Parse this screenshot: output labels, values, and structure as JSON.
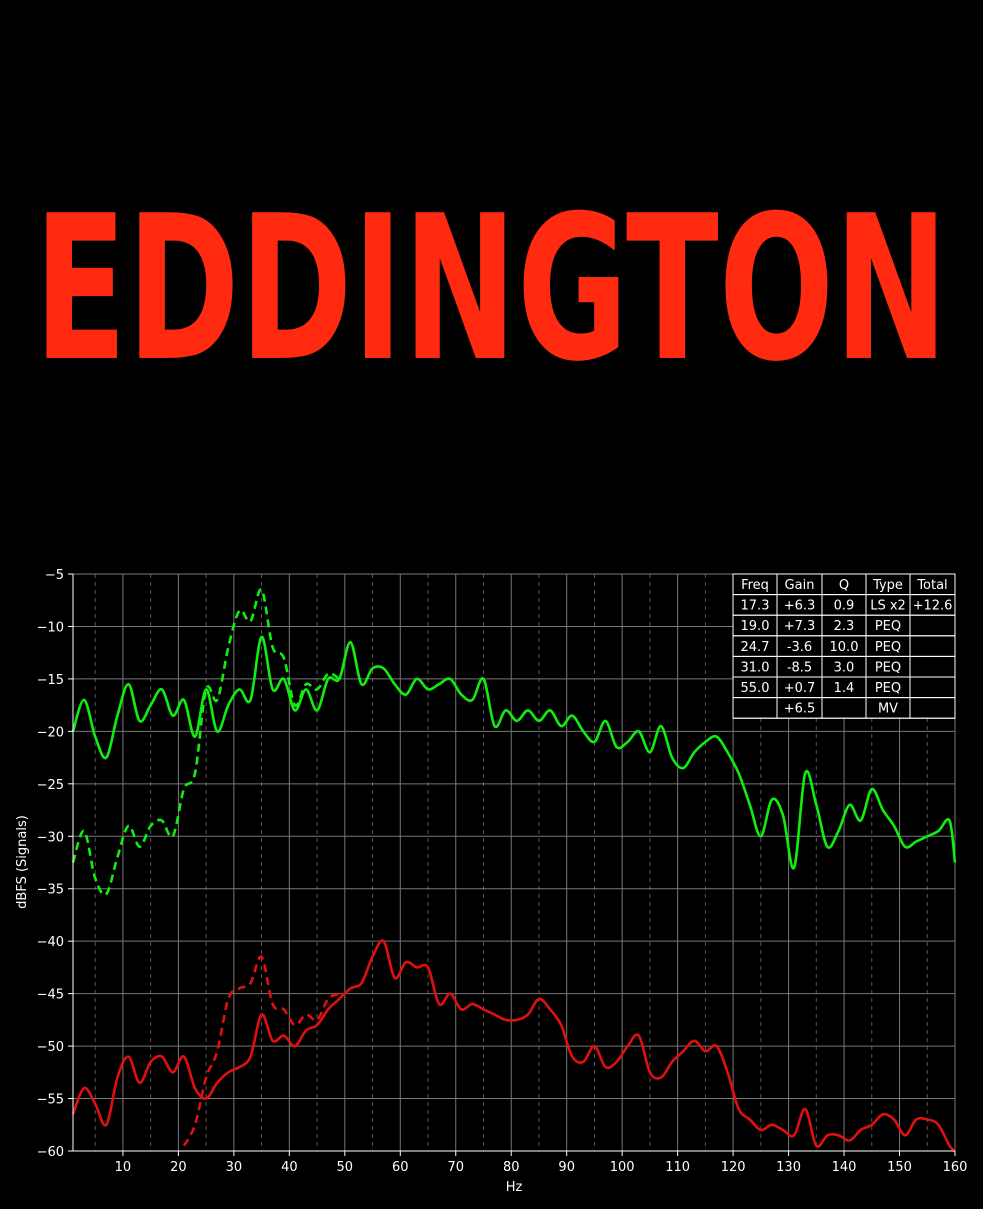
{
  "logo": {
    "text": "EDDINGTON",
    "color": "#ff2a10"
  },
  "chart_data": {
    "type": "line",
    "xlabel": "Hz",
    "ylabel": "dBFS (Signals)",
    "xlim": [
      1,
      160
    ],
    "ylim": [
      -60,
      -5
    ],
    "x_ticks": [
      10,
      20,
      30,
      40,
      50,
      60,
      70,
      80,
      90,
      100,
      110,
      120,
      130,
      140,
      150,
      160
    ],
    "y_ticks": [
      -5,
      -10,
      -15,
      -20,
      -25,
      -30,
      -35,
      -40,
      -45,
      -50,
      -55,
      -60
    ],
    "grid": true,
    "colors": {
      "green": "#10ee10",
      "red": "#e01010",
      "background": "#000000",
      "grid": "#777777"
    },
    "series": [
      {
        "color": "#10ee10",
        "style": "solid",
        "x": [
          1,
          3,
          5,
          7,
          9,
          11,
          13,
          15,
          17,
          19,
          21,
          23,
          25,
          27,
          29,
          31,
          33,
          35,
          37,
          39,
          41,
          43,
          45,
          47,
          49,
          51,
          53,
          55,
          57,
          59,
          61,
          63,
          65,
          67,
          69,
          71,
          73,
          75,
          77,
          79,
          81,
          83,
          85,
          87,
          89,
          91,
          93,
          95,
          97,
          99,
          101,
          103,
          105,
          107,
          109,
          111,
          113,
          115,
          117,
          119,
          121,
          123,
          125,
          127,
          129,
          131,
          133,
          135,
          137,
          139,
          141,
          143,
          145,
          147,
          149,
          151,
          153,
          155,
          157,
          159,
          160
        ],
        "y": [
          -20.0,
          -17.0,
          -20.5,
          -22.5,
          -18.5,
          -15.5,
          -19.0,
          -17.5,
          -16.0,
          -18.5,
          -17.0,
          -20.5,
          -16.0,
          -20.0,
          -17.5,
          -16.0,
          -17.0,
          -11.0,
          -16.0,
          -15.0,
          -18.0,
          -16.0,
          -18.0,
          -15.0,
          -15.0,
          -11.5,
          -15.5,
          -14.0,
          -14.0,
          -15.5,
          -16.5,
          -15.0,
          -16.0,
          -15.5,
          -15.0,
          -16.5,
          -17.0,
          -15.0,
          -19.5,
          -18.0,
          -19.0,
          -18.0,
          -19.0,
          -18.0,
          -19.5,
          -18.5,
          -20.0,
          -21.0,
          -19.0,
          -21.5,
          -21.0,
          -20.0,
          -22.0,
          -19.5,
          -22.5,
          -23.5,
          -22.0,
          -21.0,
          -20.5,
          -22.0,
          -24.0,
          -27.0,
          -30.0,
          -26.5,
          -28.0,
          -33.0,
          -24.0,
          -27.0,
          -31.0,
          -29.5,
          -27.0,
          -28.5,
          -25.5,
          -27.5,
          -29.0,
          -31.0,
          -30.5,
          -30.0,
          -29.5,
          -28.5,
          -32.5
        ]
      },
      {
        "color": "#10ee10",
        "style": "dashed",
        "x": [
          1,
          3,
          5,
          7,
          9,
          11,
          13,
          15,
          17,
          19,
          21,
          23,
          25,
          27,
          29,
          31,
          33,
          35,
          37,
          39,
          41,
          43,
          45,
          47,
          49
        ],
        "y": [
          -32.5,
          -29.5,
          -34.0,
          -35.5,
          -32.0,
          -29.0,
          -31.0,
          -29.0,
          -28.5,
          -30.0,
          -25.5,
          -24.0,
          -16.0,
          -17.0,
          -12.0,
          -8.5,
          -9.5,
          -6.5,
          -12.0,
          -13.0,
          -17.5,
          -15.5,
          -16.0,
          -14.5,
          -15.0
        ]
      },
      {
        "color": "#e01010",
        "style": "solid",
        "x": [
          1,
          3,
          5,
          7,
          9,
          11,
          13,
          15,
          17,
          19,
          21,
          23,
          25,
          27,
          29,
          31,
          33,
          35,
          37,
          39,
          41,
          43,
          45,
          47,
          49,
          51,
          53,
          55,
          57,
          59,
          61,
          63,
          65,
          67,
          69,
          71,
          73,
          75,
          77,
          79,
          81,
          83,
          85,
          87,
          89,
          91,
          93,
          95,
          97,
          99,
          101,
          103,
          105,
          107,
          109,
          111,
          113,
          115,
          117,
          119,
          121,
          123,
          125,
          127,
          129,
          131,
          133,
          135,
          137,
          139,
          141,
          143,
          145,
          147,
          149,
          151,
          153,
          155,
          157,
          159,
          160
        ],
        "y": [
          -56.5,
          -54.0,
          -55.5,
          -57.5,
          -53.0,
          -51.0,
          -53.5,
          -51.5,
          -51.0,
          -52.5,
          -51.0,
          -54.0,
          -55.0,
          -53.5,
          -52.5,
          -52.0,
          -51.0,
          -47.0,
          -49.5,
          -49.0,
          -50.0,
          -48.5,
          -48.0,
          -46.5,
          -45.5,
          -44.5,
          -44.0,
          -41.5,
          -40.0,
          -43.5,
          -42.0,
          -42.5,
          -42.5,
          -46.0,
          -45.0,
          -46.5,
          -46.0,
          -46.5,
          -47.0,
          -47.5,
          -47.5,
          -47.0,
          -45.5,
          -46.5,
          -48.0,
          -51.0,
          -51.5,
          -50.0,
          -52.0,
          -51.5,
          -50.0,
          -49.0,
          -52.5,
          -53.0,
          -51.5,
          -50.5,
          -49.5,
          -50.5,
          -50.0,
          -52.5,
          -56.0,
          -57.0,
          -58.0,
          -57.5,
          -58.0,
          -58.5,
          -56.0,
          -59.5,
          -58.5,
          -58.5,
          -59.0,
          -58.0,
          -57.5,
          -56.5,
          -57.0,
          -58.5,
          -57.0,
          -57.0,
          -57.5,
          -59.5,
          -60.0
        ]
      },
      {
        "color": "#e01010",
        "style": "dashed",
        "x": [
          21,
          23,
          25,
          27,
          29,
          31,
          33,
          35,
          37,
          39,
          41,
          43,
          45,
          47,
          49
        ],
        "y": [
          -59.5,
          -57.5,
          -53.0,
          -50.5,
          -45.5,
          -44.5,
          -44.0,
          -41.5,
          -46.0,
          -46.5,
          -48.0,
          -47.0,
          -47.5,
          -45.5,
          -45.0
        ]
      }
    ],
    "table": {
      "headers": [
        "Freq",
        "Gain",
        "Q",
        "Type",
        "Total"
      ],
      "rows": [
        [
          "17.3",
          "+6.3",
          "0.9",
          "LS x2",
          "+12.6"
        ],
        [
          "19.0",
          "+7.3",
          "2.3",
          "PEQ",
          ""
        ],
        [
          "24.7",
          "-3.6",
          "10.0",
          "PEQ",
          ""
        ],
        [
          "31.0",
          "-8.5",
          "3.0",
          "PEQ",
          ""
        ],
        [
          "55.0",
          "+0.7",
          "1.4",
          "PEQ",
          ""
        ],
        [
          "",
          "+6.5",
          "",
          "MV",
          ""
        ]
      ]
    }
  }
}
